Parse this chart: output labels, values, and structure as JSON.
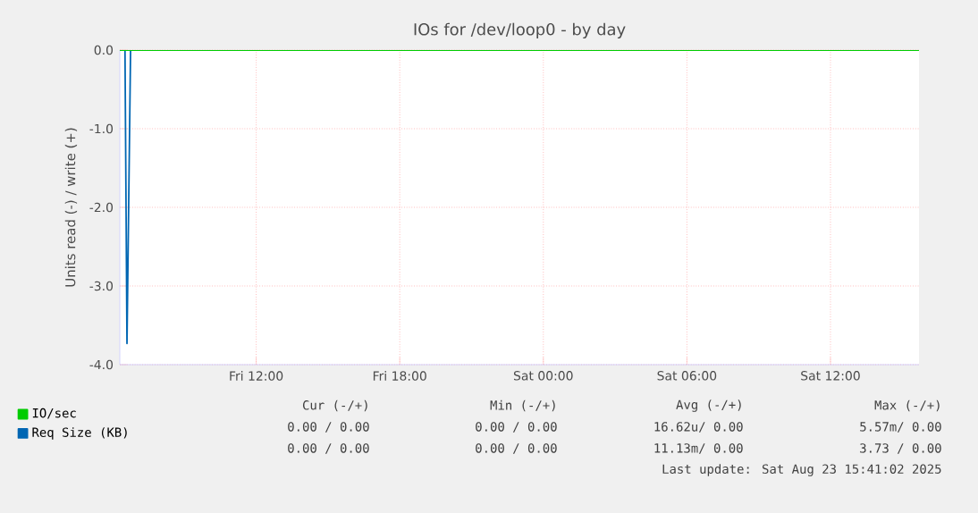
{
  "chart_data": {
    "type": "line",
    "title": "IOs for /dev/loop0 - by day",
    "ylabel": "Units read (-) / write (+)",
    "xlim": [
      "2025-08-22T06:18",
      "2025-08-23T15:42"
    ],
    "ylim": [
      -4,
      0
    ],
    "xticks": [
      {
        "value": "2025-08-22T12:00",
        "label": "Fri 12:00"
      },
      {
        "value": "2025-08-22T18:00",
        "label": "Fri 18:00"
      },
      {
        "value": "2025-08-23T00:00",
        "label": "Sat 00:00"
      },
      {
        "value": "2025-08-23T06:00",
        "label": "Sat 06:00"
      },
      {
        "value": "2025-08-23T12:00",
        "label": "Sat 12:00"
      }
    ],
    "yticks": [
      {
        "value": -4,
        "label": "-4.0"
      },
      {
        "value": -3,
        "label": "-3.0"
      },
      {
        "value": -2,
        "label": "-2.0"
      },
      {
        "value": -1,
        "label": "-1.0"
      },
      {
        "value": 0,
        "label": "0.0"
      }
    ],
    "series": [
      {
        "name": "Req Size (KB)",
        "color": "#0066b3",
        "x": [
          "2025-08-22T06:31",
          "2025-08-22T06:36",
          "2025-08-22T06:45"
        ],
        "values": [
          0,
          -3.73,
          0
        ]
      },
      {
        "name": "IO/sec",
        "color": "#00cc00",
        "x": [
          "2025-08-22T06:18",
          "2025-08-23T15:42"
        ],
        "values": [
          0,
          0
        ]
      }
    ],
    "grid": true,
    "legend": "bottom left",
    "annotations": [
      "Cur (-/+)",
      "Min (-/+)",
      "Avg (-/+)",
      "Max (-/+)",
      "0.00 /  0.00",
      "0.00 /  0.00",
      "16.62u/  0.00",
      "5.57m/  0.00",
      "0.00 /  0.00",
      "0.00 /  0.00",
      "11.13m/  0.00",
      "3.73 /  0.00",
      "Last update: Sat Aug 23 15:41:02 2025"
    ]
  }
}
